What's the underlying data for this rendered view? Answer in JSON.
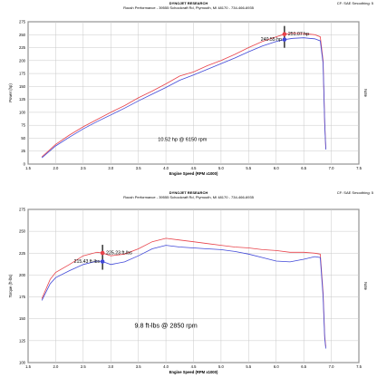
{
  "chart_data": [
    {
      "type": "line",
      "header": {
        "top_left": "",
        "title": "DYNOJET RESEARCH",
        "subtitle": "Roush Performance - 39555 Schoolcraft Rd, Plymouth, MI 48170 - 734-466-6935",
        "top_right": "CF: SAE  Smoothing: 5"
      },
      "xlabel": "Engine Speed (RPM x1000)",
      "ylabel": "Power (hp)",
      "right_label": "Note",
      "xlim": [
        1.5,
        7.5
      ],
      "ylim": [
        0,
        275
      ],
      "x_ticks": [
        "1.5",
        "2.0",
        "2.5",
        "3.0",
        "3.5",
        "4.0",
        "4.5",
        "5.0",
        "5.5",
        "6.0",
        "6.5",
        "7.0",
        "7.5"
      ],
      "y_ticks": [
        "0",
        "25",
        "50",
        "75",
        "100",
        "125",
        "150",
        "175",
        "200",
        "225",
        "250",
        "275"
      ],
      "grid": true,
      "series": [
        {
          "color": "#e8424a",
          "x": [
            1.75,
            2.0,
            2.25,
            2.5,
            2.75,
            3.0,
            3.25,
            3.5,
            3.75,
            4.0,
            4.25,
            4.5,
            4.75,
            5.0,
            5.25,
            5.5,
            5.75,
            6.0,
            6.15,
            6.3,
            6.5,
            6.6,
            6.7,
            6.8,
            6.85,
            6.88,
            6.9
          ],
          "y": [
            14,
            38,
            56,
            72,
            86,
            100,
            113,
            128,
            141,
            155,
            170,
            178,
            190,
            200,
            212,
            225,
            237,
            246,
            251.07,
            253,
            252,
            251,
            250,
            246,
            200,
            80,
            30
          ]
        },
        {
          "color": "#4048d8",
          "x": [
            1.75,
            2.0,
            2.25,
            2.5,
            2.75,
            3.0,
            3.25,
            3.5,
            3.75,
            4.0,
            4.25,
            4.5,
            4.75,
            5.0,
            5.25,
            5.5,
            5.75,
            6.0,
            6.15,
            6.3,
            6.5,
            6.6,
            6.7,
            6.8,
            6.85,
            6.88,
            6.9
          ],
          "y": [
            12,
            35,
            52,
            68,
            82,
            95,
            108,
            122,
            135,
            148,
            162,
            172,
            183,
            194,
            205,
            217,
            228,
            237,
            240.55,
            243,
            244,
            243,
            242,
            238,
            195,
            78,
            28
          ]
        }
      ],
      "annotations": [
        {
          "text": "251.07 hp",
          "x": 6.15,
          "y": 251.07,
          "color": "#e8424a"
        },
        {
          "text": "240.55 hp",
          "x": 6.15,
          "y": 240.55,
          "color": "#4048d8"
        },
        {
          "text": "10.52 hp @ 6150 rpm",
          "x": 4.3,
          "y": 45
        }
      ],
      "marker_x": 6.15
    },
    {
      "type": "line",
      "header": {
        "top_left": "",
        "title": "DYNOJET RESEARCH",
        "subtitle": "Roush Performance - 39555 Schoolcraft Rd, Plymouth, MI 48170 - 734-466-6935",
        "top_right": "CF: SAE  Smoothing: 5"
      },
      "xlabel": "Engine Speed (RPM x1000)",
      "ylabel": "Torque (ft-lbs)",
      "right_label": "Note",
      "xlim": [
        1.5,
        7.5
      ],
      "ylim": [
        100,
        275
      ],
      "x_ticks": [
        "1.5",
        "2.0",
        "2.5",
        "3.0",
        "3.5",
        "4.0",
        "4.5",
        "5.0",
        "5.5",
        "6.0",
        "6.5",
        "7.0",
        "7.5"
      ],
      "y_ticks": [
        "100",
        "125",
        "150",
        "175",
        "200",
        "225",
        "250",
        "275"
      ],
      "grid": true,
      "series": [
        {
          "color": "#e8424a",
          "x": [
            1.75,
            1.9,
            2.0,
            2.25,
            2.5,
            2.75,
            2.85,
            3.0,
            3.25,
            3.5,
            3.75,
            4.0,
            4.25,
            4.5,
            4.75,
            5.0,
            5.25,
            5.5,
            5.75,
            6.0,
            6.25,
            6.5,
            6.7,
            6.8,
            6.85,
            6.88,
            6.9
          ],
          "y": [
            173,
            195,
            203,
            212,
            222,
            226,
            225.23,
            222,
            224,
            230,
            238,
            242,
            240,
            238,
            236,
            234,
            232,
            231,
            229,
            228,
            226,
            226,
            225,
            224,
            180,
            130,
            118
          ]
        },
        {
          "color": "#4048d8",
          "x": [
            1.75,
            1.9,
            2.0,
            2.25,
            2.5,
            2.75,
            2.85,
            3.0,
            3.25,
            3.5,
            3.75,
            4.0,
            4.25,
            4.5,
            4.75,
            5.0,
            5.25,
            5.5,
            5.75,
            6.0,
            6.25,
            6.5,
            6.7,
            6.8,
            6.85,
            6.88,
            6.9
          ],
          "y": [
            171,
            190,
            197,
            205,
            212,
            216,
            215.43,
            212,
            215,
            222,
            230,
            234,
            232,
            231,
            230,
            229,
            227,
            224,
            220,
            216,
            215,
            218,
            221,
            220,
            176,
            128,
            116
          ]
        }
      ],
      "annotations": [
        {
          "text": "225.23 ft-lbs",
          "x": 2.85,
          "y": 225.23,
          "color": "#e8424a"
        },
        {
          "text": "215.43 ft-lbs",
          "x": 2.85,
          "y": 215.43,
          "color": "#4048d8"
        },
        {
          "text": "9.8 ft-lbs @ 2850 rpm",
          "x": 4.0,
          "y": 140
        }
      ],
      "marker_x": 2.85
    }
  ]
}
